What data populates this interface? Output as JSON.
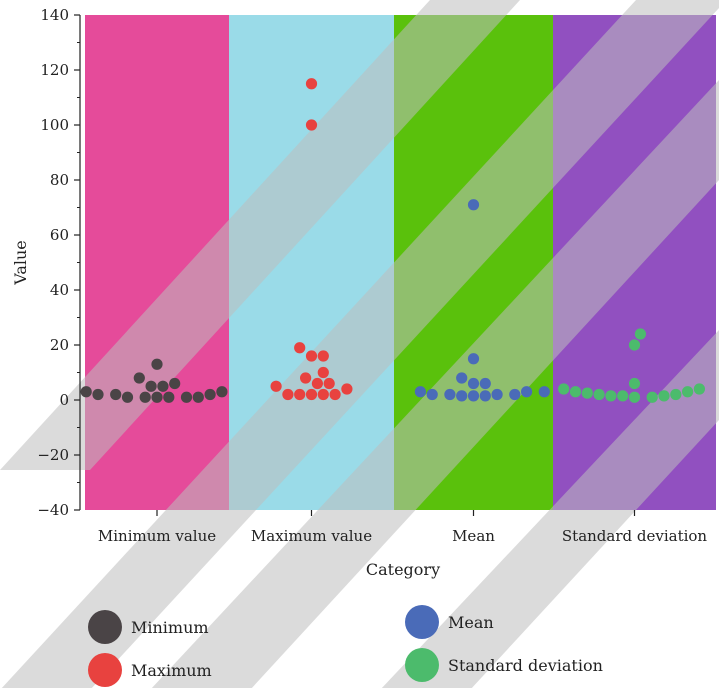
{
  "chart_data": {
    "type": "scatter",
    "subtype": "swarm",
    "title": "",
    "xlabel": "Category",
    "ylabel": "Value",
    "ylim": [
      -40,
      140
    ],
    "yticks": [
      -40,
      -20,
      0,
      20,
      40,
      60,
      80,
      100,
      120,
      140
    ],
    "ytick_labels": [
      "−40",
      "−20",
      "0",
      "20",
      "40",
      "60",
      "80",
      "100",
      "120",
      "140"
    ],
    "categories": [
      "Minimum value",
      "Maximum value",
      "Mean",
      "Standard deviation"
    ],
    "background_colors": [
      "#e54b9a",
      "#9adbe8",
      "#5ac10c",
      "#9150c0"
    ],
    "grid": false,
    "legend_position": "bottom",
    "series": [
      {
        "name": "Minimum",
        "color": "#4a4446",
        "category": "Minimum value",
        "values": [
          3,
          2,
          2,
          1,
          1,
          1,
          1,
          1,
          1,
          2,
          3,
          8,
          5,
          5,
          6,
          13
        ]
      },
      {
        "name": "Maximum",
        "color": "#e8423f",
        "category": "Maximum value",
        "values": [
          5,
          2,
          2,
          2,
          2,
          2,
          4,
          6,
          6,
          10,
          8,
          16,
          16,
          19,
          100,
          115
        ]
      },
      {
        "name": "Mean",
        "color": "#4a6bb8",
        "category": "Mean",
        "values": [
          3,
          2,
          2,
          1.5,
          1.5,
          1.5,
          2,
          2,
          3,
          3,
          6,
          6,
          8,
          15,
          71
        ]
      },
      {
        "name": "Standard deviation",
        "color": "#4cbb6c",
        "category": "Standard deviation",
        "values": [
          4,
          4,
          2.5,
          2,
          1.5,
          1,
          1,
          1.5,
          1.5,
          2,
          3,
          3,
          6,
          20,
          24
        ]
      }
    ]
  }
}
